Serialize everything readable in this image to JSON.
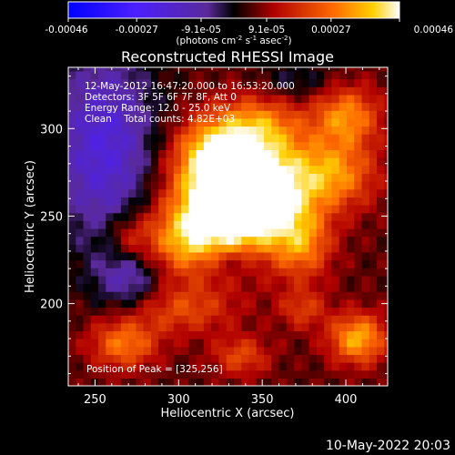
{
  "chart_data": {
    "type": "heatmap",
    "title": "Reconstructed RHESSI Image",
    "xlabel": "Heliocentric X (arcsec)",
    "ylabel": "Heliocentric Y (arcsec)",
    "xlim": [
      234,
      425
    ],
    "ylim": [
      153,
      335
    ],
    "x_ticks": [
      250,
      300,
      350,
      400
    ],
    "y_ticks": [
      200,
      250,
      300
    ],
    "colorbar": {
      "min": -0.00046,
      "max": 0.00046,
      "tick_values": [
        -0.00046,
        -0.00027,
        -9.1e-05,
        9.1e-05,
        0.00027,
        0.00046
      ],
      "tick_labels": [
        "-0.00046",
        "-0.00027",
        "-9.1e-05",
        "9.1e-05",
        "0.00027",
        "0.00046"
      ],
      "unit_label": "(photons cm",
      "unit_sup1": "-2",
      "unit_mid": " s",
      "unit_sup2": "-1",
      "unit_end": " asec",
      "unit_sup3": "-2",
      "unit_close": ")"
    },
    "info_lines": [
      "12-May-2012 16:47:20.000 to 16:53:20.000",
      "Detectors: 3F 5F 6F 7F 8F, Att 0",
      "Energy Range: 12.0 - 25.0 keV",
      "Clean    Total counts: 4.82E+03"
    ],
    "peak_label": "Position of Peak = [325,256]",
    "peak": [
      325,
      256
    ],
    "sources": [
      {
        "x": 325,
        "y": 256,
        "amp": 1.0,
        "sx": 22,
        "sy": 20
      },
      {
        "x": 350,
        "y": 262,
        "amp": 0.75,
        "sx": 20,
        "sy": 22
      },
      {
        "x": 318,
        "y": 285,
        "amp": 0.55,
        "sx": 16,
        "sy": 14
      },
      {
        "x": 345,
        "y": 300,
        "amp": 0.45,
        "sx": 18,
        "sy": 12
      },
      {
        "x": 300,
        "y": 233,
        "amp": 0.5,
        "sx": 16,
        "sy": 14
      },
      {
        "x": 390,
        "y": 272,
        "amp": 0.55,
        "sx": 18,
        "sy": 14
      },
      {
        "x": 398,
        "y": 305,
        "amp": 0.55,
        "sx": 14,
        "sy": 12
      },
      {
        "x": 405,
        "y": 178,
        "amp": 0.65,
        "sx": 12,
        "sy": 10
      },
      {
        "x": 265,
        "y": 175,
        "amp": 0.5,
        "sx": 14,
        "sy": 10
      },
      {
        "x": 300,
        "y": 195,
        "amp": 0.35,
        "sx": 22,
        "sy": 10
      },
      {
        "x": 372,
        "y": 232,
        "amp": 0.45,
        "sx": 12,
        "sy": 14
      },
      {
        "x": 268,
        "y": 236,
        "amp": 0.3,
        "sx": 10,
        "sy": 10
      },
      {
        "x": 335,
        "y": 168,
        "amp": 0.35,
        "sx": 12,
        "sy": 8
      },
      {
        "x": 372,
        "y": 195,
        "amp": 0.3,
        "sx": 10,
        "sy": 8
      },
      {
        "x": 253,
        "y": 288,
        "amp": -0.55,
        "sx": 22,
        "sy": 40
      },
      {
        "x": 268,
        "y": 212,
        "amp": -0.35,
        "sx": 14,
        "sy": 12
      },
      {
        "x": 330,
        "y": 222,
        "amp": -0.2,
        "sx": 12,
        "sy": 6
      },
      {
        "x": 368,
        "y": 325,
        "amp": -0.2,
        "sx": 16,
        "sy": 8
      }
    ],
    "grid": false
  },
  "footer_date": "10-May-2022 20:03"
}
